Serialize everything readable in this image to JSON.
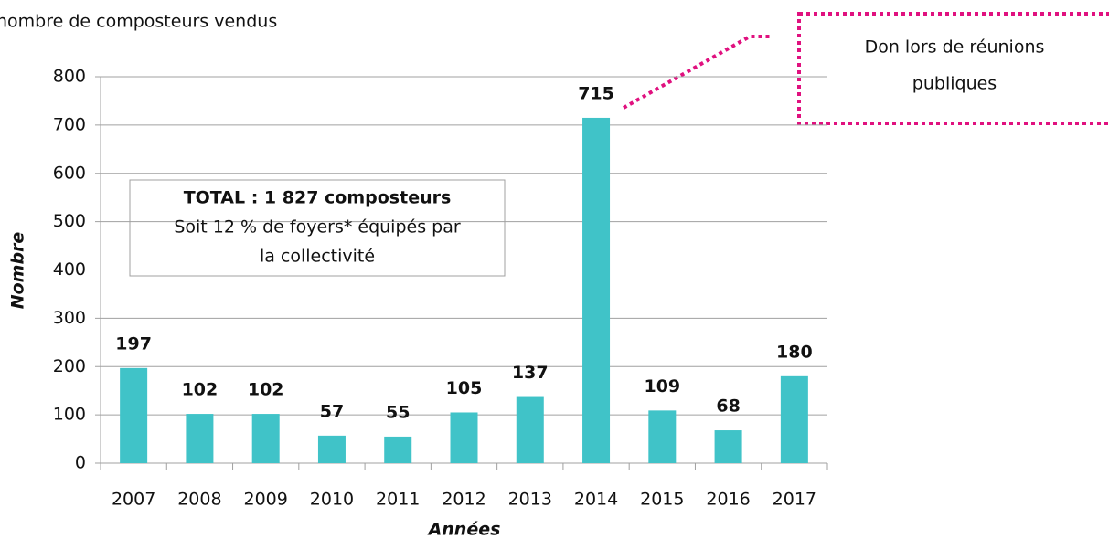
{
  "chart_data": {
    "type": "bar",
    "title": "nombre de composteurs vendus",
    "x_label": "Années",
    "y_label": "Nombre",
    "categories": [
      "2007",
      "2008",
      "2009",
      "2010",
      "2011",
      "2012",
      "2013",
      "2014",
      "2015",
      "2016",
      "2017"
    ],
    "values": [
      197,
      102,
      102,
      57,
      55,
      105,
      137,
      715,
      109,
      68,
      180
    ],
    "color": "#40c3c8",
    "ylim": [
      0,
      800
    ],
    "yticks": [
      0,
      100,
      200,
      300,
      400,
      500,
      600,
      700,
      800
    ],
    "grid": true,
    "text_box": [
      "TOTAL : 1 827 composteurs",
      "Soit 12 % de foyers* équipés par",
      "la collectivité"
    ],
    "callout": [
      "Don lors de réunions",
      "publiques"
    ]
  }
}
